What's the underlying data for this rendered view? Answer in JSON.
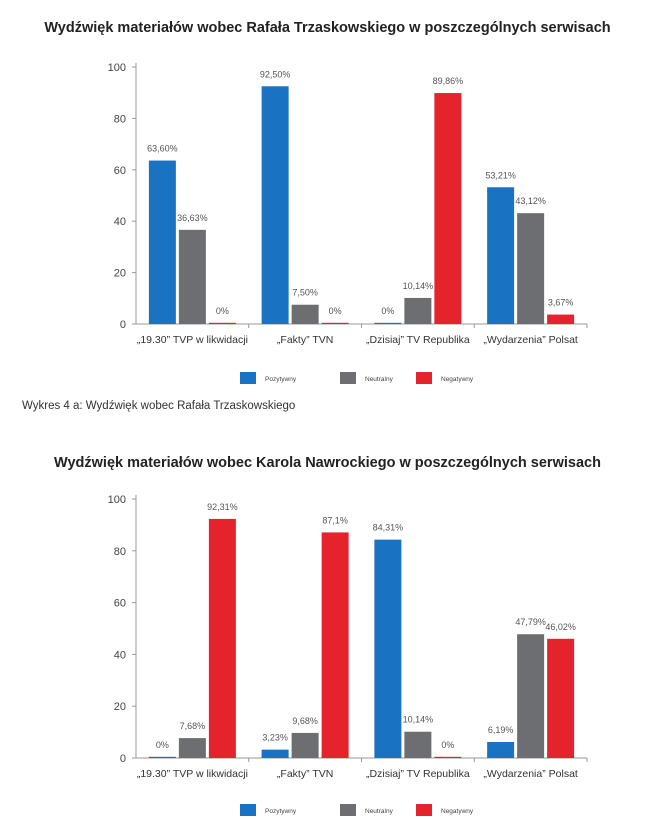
{
  "chart_data": [
    {
      "type": "bar",
      "title": "Wydźwięk materiałów wobec Rafała Trzaskowskiego w poszczególnych serwisach",
      "categories": [
        "„19.30” TVP w likwidacji",
        "„Fakty” TVN",
        "„Dzisiaj” TV Republika",
        "„Wydarzenia” Polsat"
      ],
      "series": [
        {
          "name": "Pozytywny",
          "color": "#1a73c2",
          "values": [
            63.6,
            92.5,
            0,
            53.21
          ],
          "labels": [
            "63,60%",
            "92,50%",
            "0%",
            "53,21%"
          ]
        },
        {
          "name": "Neutralny",
          "color": "#6d6e71",
          "values": [
            36.63,
            7.5,
            10.14,
            43.12
          ],
          "labels": [
            "36,63%",
            "7,50%",
            "10,14%",
            "43,12%"
          ]
        },
        {
          "name": "Negatywny",
          "color": "#e5232c",
          "values": [
            0,
            0,
            89.86,
            3.67
          ],
          "labels": [
            "0%",
            "0%",
            "89,86%",
            "3,67%"
          ]
        }
      ],
      "yticks": [
        "0",
        "20",
        "40",
        "60",
        "80",
        "100"
      ],
      "ylim": [
        0,
        100
      ],
      "xlabel": "",
      "ylabel": "",
      "legend": "bottom"
    },
    {
      "type": "bar",
      "title": "Wydźwięk materiałów wobec Karola Nawrockiego w poszczególnych serwisach",
      "categories": [
        "„19.30” TVP w likwidacji",
        "„Fakty” TVN",
        "„Dzisiaj” TV Republika",
        "„Wydarzenia” Polsat"
      ],
      "series": [
        {
          "name": "Pozytywny",
          "color": "#1a73c2",
          "values": [
            0,
            3.23,
            84.31,
            6.19
          ],
          "labels": [
            "0%",
            "3,23%",
            "84,31%",
            "6,19%"
          ]
        },
        {
          "name": "Neutralny",
          "color": "#6d6e71",
          "values": [
            7.68,
            9.68,
            10.14,
            47.79
          ],
          "labels": [
            "7,68%",
            "9,68%",
            "10,14%",
            "47,79%"
          ]
        },
        {
          "name": "Negatywny",
          "color": "#e5232c",
          "values": [
            92.31,
            87.1,
            0,
            46.02
          ],
          "labels": [
            "92,31%",
            "87,1%",
            "0%",
            "46,02%"
          ]
        }
      ],
      "yticks": [
        "0",
        "20",
        "40",
        "60",
        "80",
        "100"
      ],
      "ylim": [
        0,
        100
      ],
      "xlabel": "",
      "ylabel": "",
      "legend": "bottom"
    }
  ],
  "caption": "Wykres 4 a: Wydźwięk wobec Rafała Trzaskowskiego"
}
